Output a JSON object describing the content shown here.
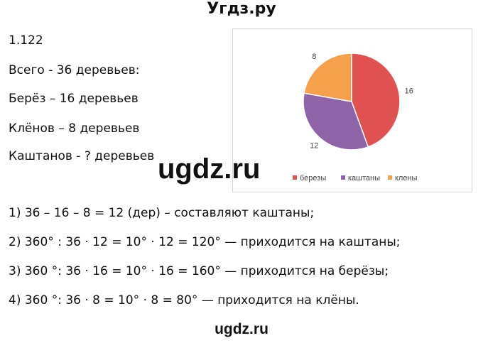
{
  "header": {
    "title": "Угдз.ру"
  },
  "problem": "1.122",
  "given": [
    "Всего - 36 деревьев:",
    "Берёз – 16 деревьев",
    "Клёнов – 8 деревьев",
    "Каштанов - ? деревьев"
  ],
  "chart_data": {
    "type": "pie",
    "categories": [
      "березы",
      "каштаны",
      "клены"
    ],
    "values": [
      16,
      12,
      8
    ],
    "colors": [
      "#e05252",
      "#8e63a8",
      "#f5a04a"
    ]
  },
  "watermark": "ugdz.ru",
  "solution": [
    "1) 36 – 16 – 8 = 12 (дер) – составляют каштаны;",
    "2) 360° : 36 · 12 = 10° · 12 = 120° — приходится на каштаны;",
    "3) 360 °: 36 · 16 = 10° · 16 = 160° — приходится на берёзы;",
    "4) 360 °: 36 · 8 = 10° · 8 = 80° — приходится на клёны."
  ],
  "footer": "ugdz.ru"
}
